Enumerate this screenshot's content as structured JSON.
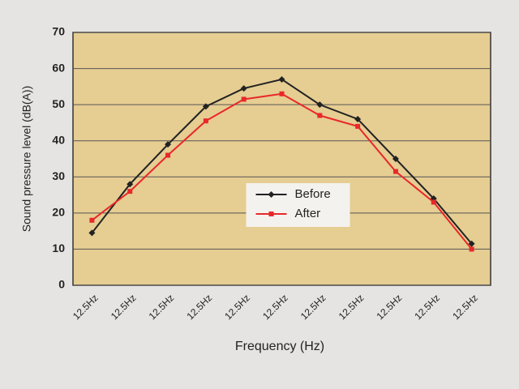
{
  "chart_data": {
    "type": "line",
    "x_label": "Frequency (Hz)",
    "y_label": "Sound pressure level (dB(A))",
    "categories": [
      "12.5Hz",
      "12.5Hz",
      "12.5Hz",
      "12.5Hz",
      "12.5Hz",
      "12.5Hz",
      "12.5Hz",
      "12.5Hz",
      "12.5Hz",
      "12.5Hz",
      "12.5Hz"
    ],
    "series": [
      {
        "name": "Before",
        "color": "#222222",
        "marker": "diamond",
        "values": [
          14.5,
          28,
          39,
          49.5,
          54.5,
          57,
          50,
          46,
          35,
          24,
          11.5
        ]
      },
      {
        "name": "After",
        "color": "#e8282a",
        "marker": "square",
        "values": [
          18,
          26,
          36,
          45.5,
          51.5,
          53,
          47,
          44,
          31.5,
          23,
          10
        ]
      }
    ],
    "ylim": [
      0,
      70
    ],
    "yticks": [
      0,
      10,
      20,
      30,
      40,
      50,
      60,
      70
    ],
    "grid": true,
    "legend": "center",
    "plot_color": "#e6cd92"
  }
}
